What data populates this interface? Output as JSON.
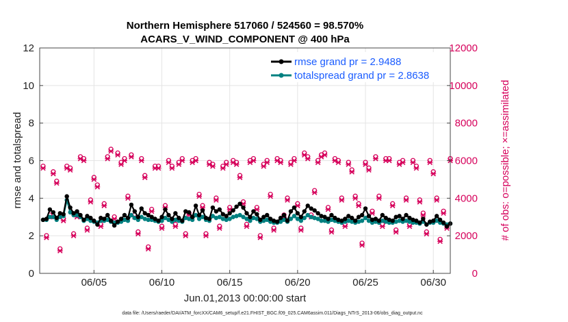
{
  "chart_data": {
    "type": "line",
    "title_line1": "Northern Hemisphere 517060 / 524560 = 98.570%",
    "title_line2": "ACARS_V_WIND_COMPONENT @ 400 hPa",
    "xlabel": "Jun.01,2013 00:00:00 start",
    "ylabel_left": "rmse and totalspread",
    "ylabel_right": "# of obs: o=possible; ×=assimilated",
    "footer": "data file: /Users/raeder/DAI/ATM_forcXX/CAM6_setup/f.e21.FHIST_BGC.f09_025.CAM6assim.011/Diags_NTrS_2013-06/obs_diag_output.nc",
    "xlim": [
      1.0,
      31.25
    ],
    "x_ticks": [
      5,
      10,
      15,
      20,
      25,
      30
    ],
    "x_tick_labels": [
      "06/05",
      "06/10",
      "06/15",
      "06/20",
      "06/25",
      "06/30"
    ],
    "ylim_left": [
      0,
      12
    ],
    "y_ticks_left": [
      "0",
      "2",
      "4",
      "6",
      "8",
      "10",
      "12"
    ],
    "ylim_right": [
      0,
      12000
    ],
    "y_ticks_right": [
      "0",
      "2000",
      "4000",
      "6000",
      "8000",
      "10000",
      "12000"
    ],
    "grid": true,
    "legend_position": "top-right",
    "colors": {
      "rmse": "#000000",
      "spread": "#008080",
      "obs": "#d6005b",
      "legend_text": "#1a5cff"
    },
    "series": [
      {
        "name": "rmse grand pr = 2.9488",
        "axis": "left",
        "values": [
          2.85,
          2.9,
          3.4,
          3.25,
          2.95,
          3.2,
          3.15,
          4.1,
          3.5,
          3.2,
          3.3,
          3.1,
          2.85,
          3.05,
          2.95,
          2.8,
          2.6,
          2.95,
          2.9,
          3.1,
          2.8,
          2.55,
          2.75,
          2.9,
          3.1,
          2.95,
          3.65,
          3.3,
          3.0,
          3.45,
          3.2,
          3.1,
          3.0,
          2.9,
          2.8,
          3.0,
          3.4,
          3.1,
          2.9,
          3.2,
          2.95,
          2.8,
          3.3,
          3.25,
          3.0,
          3.6,
          3.1,
          3.35,
          2.95,
          2.9,
          3.5,
          3.3,
          3.4,
          3.15,
          3.05,
          3.2,
          3.35,
          3.55,
          3.7,
          3.5,
          3.2,
          3.0,
          3.3,
          3.15,
          2.85,
          3.0,
          3.1,
          2.9,
          2.8,
          2.75,
          2.95,
          3.1,
          2.8,
          3.3,
          3.5,
          3.2,
          3.0,
          3.3,
          3.6,
          3.45,
          3.35,
          3.2,
          3.05,
          3.0,
          2.9,
          3.1,
          2.95,
          2.85,
          2.8,
          2.9,
          3.05,
          2.95,
          2.8,
          3.0,
          3.1,
          3.45,
          3.05,
          2.85,
          2.9,
          2.8,
          3.1,
          2.95,
          2.85,
          2.8,
          3.0,
          3.05,
          2.9,
          3.1,
          2.95,
          2.85,
          2.8,
          2.7,
          2.9,
          2.6,
          2.75,
          2.8,
          3.05,
          2.85,
          2.7,
          2.5,
          2.65
        ]
      },
      {
        "name": "totalspread grand pr = 2.8638",
        "axis": "left",
        "values": [
          2.85,
          2.85,
          3.0,
          3.0,
          2.85,
          3.0,
          3.05,
          3.9,
          3.25,
          3.1,
          3.1,
          3.0,
          2.8,
          2.9,
          2.8,
          2.75,
          2.7,
          2.8,
          2.8,
          2.85,
          2.75,
          2.7,
          2.7,
          2.75,
          2.85,
          2.8,
          3.1,
          2.95,
          2.85,
          3.0,
          2.9,
          2.85,
          2.85,
          2.8,
          2.75,
          2.8,
          2.95,
          2.85,
          2.75,
          2.85,
          2.8,
          2.75,
          2.95,
          2.9,
          2.85,
          3.1,
          2.9,
          3.0,
          2.85,
          2.8,
          3.05,
          2.95,
          3.0,
          2.9,
          2.85,
          2.9,
          3.0,
          3.05,
          3.1,
          3.0,
          2.9,
          2.8,
          2.95,
          2.9,
          2.75,
          2.8,
          2.85,
          2.75,
          2.7,
          2.7,
          2.75,
          2.85,
          2.75,
          2.9,
          3.05,
          2.9,
          2.8,
          2.95,
          3.1,
          3.0,
          2.95,
          2.9,
          2.8,
          2.8,
          2.75,
          2.85,
          2.8,
          2.75,
          2.7,
          2.75,
          2.8,
          2.75,
          2.7,
          2.75,
          2.8,
          2.95,
          2.8,
          2.7,
          2.75,
          2.7,
          2.8,
          2.75,
          2.7,
          2.7,
          2.75,
          2.8,
          2.75,
          2.8,
          2.75,
          2.7,
          2.7,
          2.65,
          2.75,
          2.6,
          2.7,
          2.7,
          2.8,
          2.7,
          2.65,
          2.6,
          2.65
        ]
      },
      {
        "name": "obs possible/assimilated",
        "axis": "right",
        "values": [
          5600,
          1900,
          3000,
          5300,
          4800,
          1200,
          2800,
          5600,
          5500,
          2000,
          3000,
          6100,
          6000,
          2300,
          3800,
          5000,
          4600,
          2500,
          3600,
          6100,
          6500,
          2900,
          6300,
          5800,
          6000,
          4000,
          6200,
          3000,
          2100,
          6000,
          5100,
          1300,
          3300,
          5600,
          5600,
          2400,
          3500,
          5900,
          5600,
          2500,
          5800,
          6000,
          2000,
          3100,
          5900,
          6000,
          4100,
          3500,
          2000,
          5800,
          5700,
          3900,
          2400,
          5600,
          5800,
          3400,
          5900,
          5800,
          5100,
          3700,
          2500,
          5900,
          6000,
          3400,
          1900,
          5700,
          5900,
          4100,
          2300,
          6000,
          5900,
          3000,
          3900,
          5800,
          6000,
          3600,
          2300,
          6300,
          6100,
          3000,
          4300,
          5900,
          6200,
          6300,
          3400,
          2200,
          6000,
          5900,
          3900,
          2500,
          5800,
          5400,
          4000,
          3600,
          1500,
          5800,
          5500,
          3200,
          6100,
          4000,
          2500,
          6000,
          6000,
          3600,
          2200,
          5800,
          5900,
          3900,
          2500,
          5900,
          5600,
          3800,
          3100,
          2100,
          5900,
          5300,
          3900,
          1700,
          3200,
          2400,
          6000
        ]
      }
    ]
  }
}
